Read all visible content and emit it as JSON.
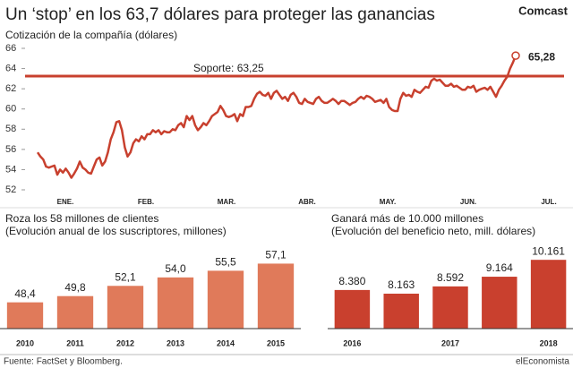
{
  "title": "Un ‘stop’ en los 63,7 dólares para proteger las ganancias",
  "brand": "Comcast",
  "source": "Fuente: FactSet y Bloomberg.",
  "credit": "elEconomista",
  "chart_data": [
    {
      "type": "line",
      "title": "Cotización de la compañía (dólares)",
      "color": "#c8402e",
      "xtick_labels": [
        "ENE.",
        "FEB.",
        "MAR.",
        "ABR.",
        "MAY.",
        "JUN.",
        "JUL."
      ],
      "ylim": [
        52,
        66
      ],
      "yticks": [
        52,
        54,
        56,
        58,
        60,
        62,
        64,
        66
      ],
      "support": {
        "value": 63.25,
        "label": "Soporte: 63,25"
      },
      "last_label": "65,28",
      "values": [
        55.7,
        55.3,
        55.0,
        54.3,
        54.2,
        54.3,
        54.4,
        53.5,
        54.0,
        53.7,
        54.1,
        53.7,
        53.2,
        53.6,
        54.1,
        54.8,
        54.2,
        54.0,
        53.7,
        53.6,
        54.3,
        55.0,
        55.2,
        54.4,
        54.8,
        55.7,
        57.0,
        57.7,
        58.7,
        58.8,
        57.9,
        56.2,
        55.3,
        55.7,
        56.6,
        57.0,
        56.8,
        57.3,
        57.0,
        57.5,
        57.5,
        57.9,
        57.7,
        57.9,
        57.5,
        57.8,
        57.7,
        57.7,
        58.0,
        57.9,
        58.4,
        58.6,
        58.2,
        59.3,
        58.9,
        59.3,
        58.4,
        57.9,
        58.2,
        58.6,
        58.4,
        58.8,
        59.3,
        59.5,
        59.7,
        60.3,
        59.9,
        59.3,
        59.2,
        59.3,
        59.5,
        58.8,
        59.5,
        59.3,
        60.2,
        60.2,
        60.3,
        61.0,
        61.5,
        61.7,
        61.4,
        61.3,
        61.6,
        61.0,
        61.6,
        61.8,
        61.4,
        61.0,
        61.2,
        60.8,
        61.4,
        61.6,
        61.2,
        60.6,
        60.5,
        61.0,
        60.7,
        60.6,
        60.5,
        61.0,
        61.2,
        60.8,
        60.6,
        60.6,
        60.8,
        61.0,
        60.8,
        60.5,
        60.8,
        60.8,
        60.6,
        60.4,
        60.6,
        60.7,
        61.0,
        61.2,
        61.0,
        61.3,
        61.2,
        61.0,
        60.7,
        60.8,
        60.9,
        60.6,
        61.0,
        60.2,
        59.9,
        59.8,
        59.8,
        61.0,
        61.6,
        61.3,
        61.4,
        61.2,
        61.9,
        61.7,
        61.6,
        61.9,
        62.2,
        62.1,
        62.8,
        63.0,
        62.8,
        62.9,
        62.6,
        62.3,
        62.3,
        62.5,
        62.2,
        62.3,
        62.1,
        61.9,
        61.9,
        62.2,
        62.1,
        62.3,
        61.7,
        61.9,
        62.0,
        62.1,
        61.9,
        62.2,
        61.7,
        61.2,
        61.9,
        62.3,
        62.8,
        63.2,
        64.0,
        64.6,
        65.28
      ]
    },
    {
      "type": "bar",
      "title": "Roza los 58 millones de clientes",
      "subtitle": "(Evolución anual de los suscriptores, millones)",
      "color": "#e07a5a",
      "ylim": [
        42.5,
        60
      ],
      "categories": [
        "2010",
        "2011",
        "2012",
        "2013",
        "2014",
        "2015"
      ],
      "values": [
        48.4,
        49.8,
        52.1,
        54.0,
        55.5,
        57.1
      ],
      "value_labels": [
        "48,4",
        "49,8",
        "52,1",
        "54,0",
        "55,5",
        "57,1"
      ]
    },
    {
      "type": "bar",
      "title": "Ganará más de 10.000 millones",
      "subtitle": "(Evolución del beneficio neto, mill. dólares)",
      "color": "#c9402e",
      "ylim": [
        6100,
        10700
      ],
      "categories": [
        "2016",
        null,
        "2017",
        null,
        "2018"
      ],
      "values": [
        8380,
        8163,
        8592,
        9164,
        10161
      ],
      "value_labels": [
        "8.380",
        "8.163",
        "8.592",
        "9.164",
        "10.161"
      ]
    }
  ]
}
